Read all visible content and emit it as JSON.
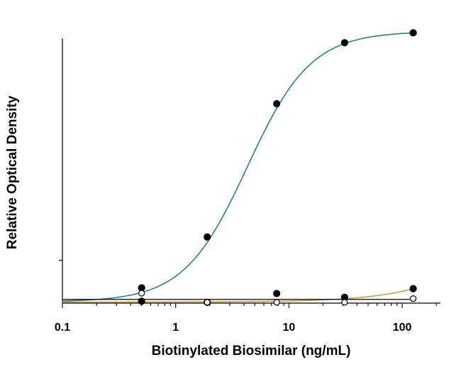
{
  "chart_data": {
    "type": "scatter",
    "title": "",
    "xlabel": "Biotinylated Biosimilar (ng/mL)",
    "ylabel": "Relative Optical Density",
    "x_scale": "log",
    "xlim": [
      0.1,
      200
    ],
    "ylim": [
      0,
      1.0
    ],
    "x_ticks": [
      0.1,
      1,
      10,
      100
    ],
    "x_tick_labels": [
      "0.1",
      "1",
      "10",
      "100"
    ],
    "y_ticks": [
      0.16
    ],
    "y_tick_labels": [
      ""
    ],
    "grid": false,
    "series": [
      {
        "color": "#1a7a82",
        "marker": "filled-circle",
        "x": [
          0.5,
          1.9,
          7.8,
          31,
          125
        ],
        "y": [
          0.057,
          0.247,
          0.745,
          0.973,
          1.01
        ]
      },
      {
        "color": "#c99a3c",
        "marker": "filled-circle",
        "x": [
          0.5,
          1.9,
          7.8,
          31,
          125
        ],
        "y": [
          0.007,
          0.003,
          0.036,
          0.022,
          0.054
        ]
      },
      {
        "color": "#000000",
        "marker": "open-circle",
        "x": [
          0.5,
          1.9,
          7.8,
          31,
          125
        ],
        "y": [
          0.037,
          0.003,
          0.003,
          0.003,
          0.017
        ]
      }
    ]
  }
}
